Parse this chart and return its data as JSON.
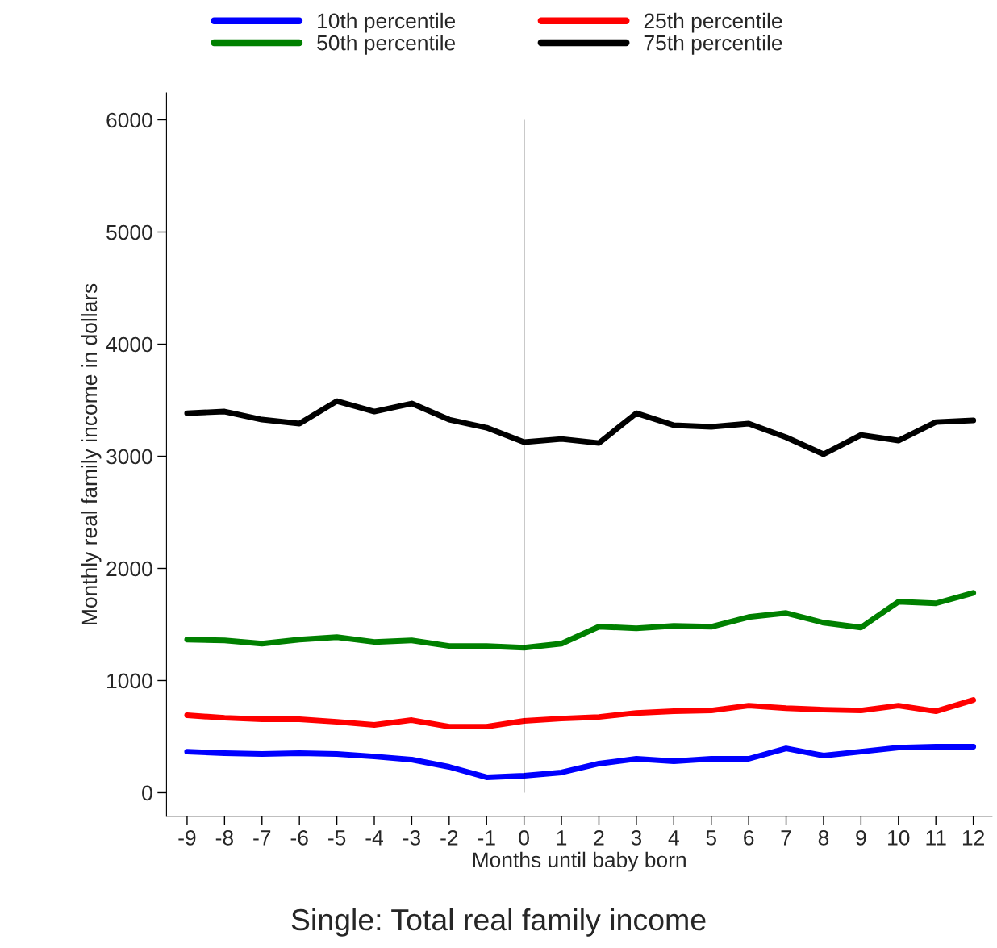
{
  "chart_data": {
    "type": "line",
    "title": "Single: Total real family income",
    "xlabel": "Months until baby born",
    "ylabel": "Monthly real family income in dollars",
    "x": [
      -9,
      -8,
      -7,
      -6,
      -5,
      -4,
      -3,
      -2,
      -1,
      0,
      1,
      2,
      3,
      4,
      5,
      6,
      7,
      8,
      9,
      10,
      11,
      12
    ],
    "series": [
      {
        "name": "10th percentile",
        "color": "#0000ff",
        "values": [
          366,
          352,
          345,
          352,
          345,
          323,
          295,
          230,
          137,
          151,
          180,
          259,
          302,
          280,
          302,
          302,
          395,
          331,
          366,
          402,
          410,
          410
        ]
      },
      {
        "name": "25th percentile",
        "color": "#ff0000",
        "values": [
          690,
          668,
          654,
          654,
          632,
          604,
          647,
          589,
          589,
          640,
          661,
          675,
          711,
          726,
          733,
          776,
          754,
          740,
          733,
          776,
          726,
          826
        ]
      },
      {
        "name": "50th percentile",
        "color": "#008000",
        "values": [
          1365,
          1358,
          1329,
          1365,
          1387,
          1344,
          1358,
          1308,
          1308,
          1293,
          1329,
          1480,
          1466,
          1487,
          1480,
          1566,
          1602,
          1516,
          1473,
          1703,
          1689,
          1782
        ]
      },
      {
        "name": "75th percentile",
        "color": "#000000",
        "values": [
          3384,
          3399,
          3327,
          3291,
          3492,
          3399,
          3471,
          3327,
          3255,
          3126,
          3154,
          3118,
          3384,
          3277,
          3262,
          3291,
          3169,
          3018,
          3190,
          3140,
          3305,
          3320
        ]
      }
    ],
    "xlim": [
      -9.55,
      12.5
    ],
    "ylim": [
      -210,
      6240
    ],
    "xticks": [
      -9,
      -8,
      -7,
      -6,
      -5,
      -4,
      -3,
      -2,
      -1,
      0,
      1,
      2,
      3,
      4,
      5,
      6,
      7,
      8,
      9,
      10,
      11,
      12
    ],
    "yticks": [
      0,
      1000,
      2000,
      3000,
      4000,
      5000,
      6000
    ],
    "ref_lines": [
      {
        "axis": "x",
        "value": 0,
        "color": "#000000"
      }
    ],
    "grid": false,
    "legend": "top",
    "line_style": "solid",
    "marker": "none"
  }
}
